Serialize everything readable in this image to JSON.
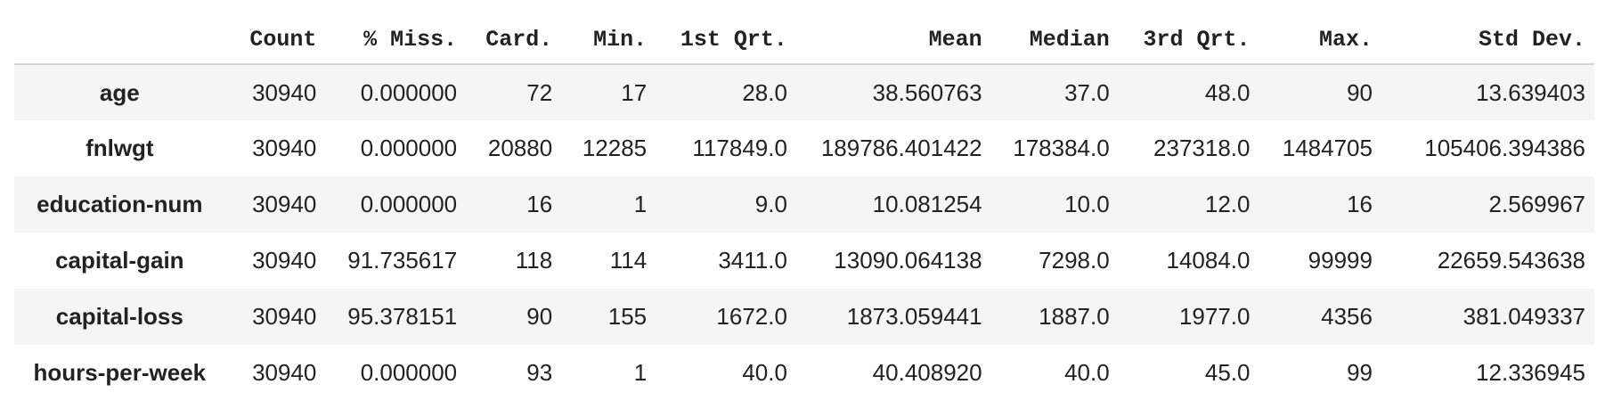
{
  "table": {
    "columns": [
      "Count",
      "% Miss.",
      "Card.",
      "Min.",
      "1st Qrt.",
      "Mean",
      "Median",
      "3rd Qrt.",
      "Max.",
      "Std Dev."
    ],
    "rows": [
      {
        "label": "age",
        "cells": [
          "30940",
          "0.000000",
          "72",
          "17",
          "28.0",
          "38.560763",
          "37.0",
          "48.0",
          "90",
          "13.639403"
        ]
      },
      {
        "label": "fnlwgt",
        "cells": [
          "30940",
          "0.000000",
          "20880",
          "12285",
          "117849.0",
          "189786.401422",
          "178384.0",
          "237318.0",
          "1484705",
          "105406.394386"
        ]
      },
      {
        "label": "education-num",
        "cells": [
          "30940",
          "0.000000",
          "16",
          "1",
          "9.0",
          "10.081254",
          "10.0",
          "12.0",
          "16",
          "2.569967"
        ]
      },
      {
        "label": "capital-gain",
        "cells": [
          "30940",
          "91.735617",
          "118",
          "114",
          "3411.0",
          "13090.064138",
          "7298.0",
          "14084.0",
          "99999",
          "22659.543638"
        ]
      },
      {
        "label": "capital-loss",
        "cells": [
          "30940",
          "95.378151",
          "90",
          "155",
          "1672.0",
          "1873.059441",
          "1887.0",
          "1977.0",
          "4356",
          "381.049337"
        ]
      },
      {
        "label": "hours-per-week",
        "cells": [
          "30940",
          "0.000000",
          "93",
          "1",
          "40.0",
          "40.408920",
          "40.0",
          "45.0",
          "99",
          "12.336945"
        ]
      }
    ]
  }
}
